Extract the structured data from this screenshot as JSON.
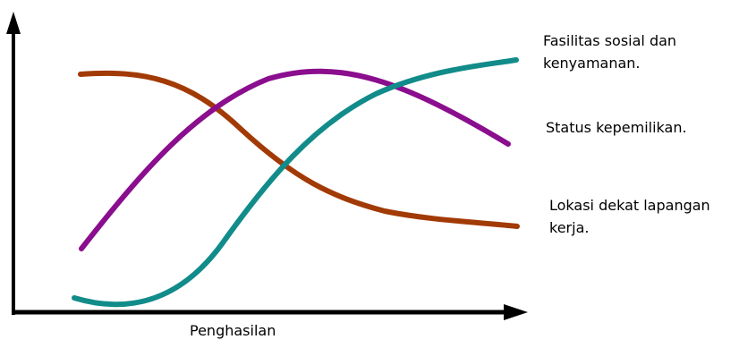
{
  "xlabel": "Penghasilan",
  "labels": [
    {
      "lines": [
        "Fasilitas sosial dan",
        "kenyamanan."
      ]
    },
    {
      "lines": [
        "Status kepemilikan."
      ]
    },
    {
      "lines": [
        "Lokasi dekat lapangan",
        "kerja."
      ]
    }
  ],
  "colors": {
    "fasilitas": "#118c8a",
    "status": "#8a0e8e",
    "lokasi": "#a23a06",
    "axis": "#000000"
  }
}
